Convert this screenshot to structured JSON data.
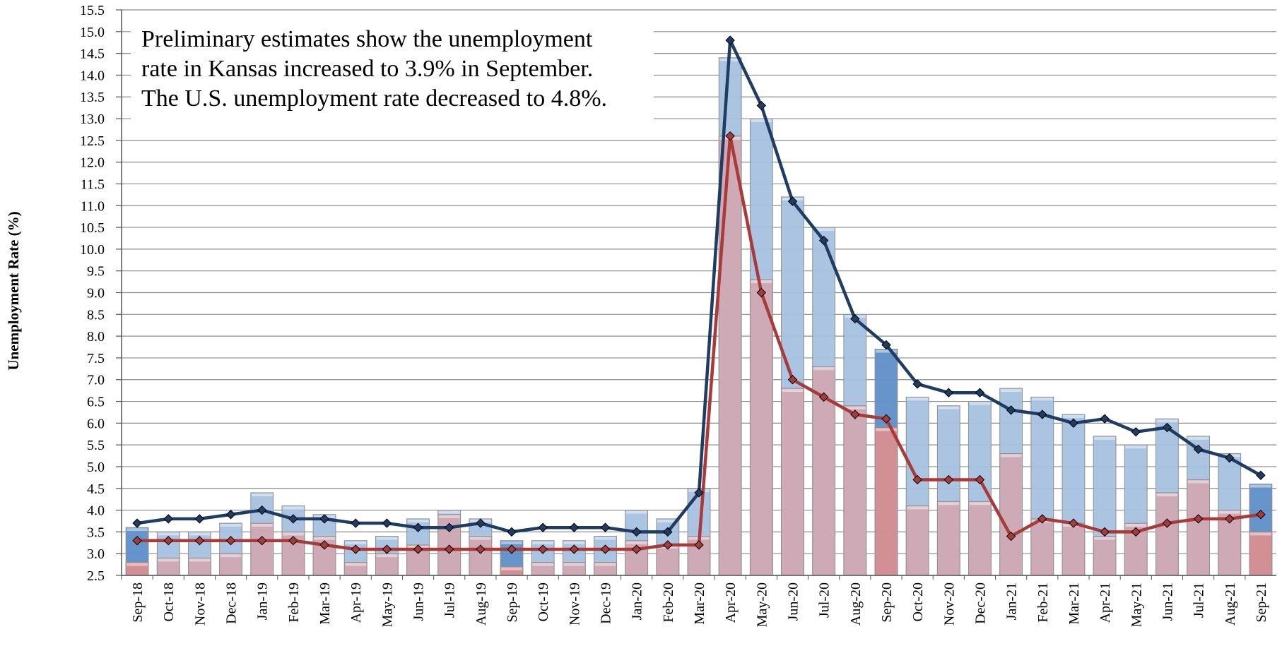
{
  "chart_data": {
    "type": "bar+line",
    "ylabel": "Unemployment Rate (%)",
    "ylim": [
      2.5,
      15.5
    ],
    "ytick_step": 0.5,
    "grid": true,
    "annotation": [
      "Preliminary estimates show the unemployment",
      "rate in Kansas increased to 3.9% in September.",
      "The U.S. unemployment rate decreased to 4.8%."
    ],
    "categories": [
      "Sep-18",
      "Oct-18",
      "Nov-18",
      "Dec-18",
      "Jan-19",
      "Feb-19",
      "Mar-19",
      "Apr-19",
      "May-19",
      "Jun-19",
      "Jul-19",
      "Aug-19",
      "Sep-19",
      "Oct-19",
      "Nov-19",
      "Dec-19",
      "Jan-20",
      "Feb-20",
      "Mar-20",
      "Apr-20",
      "May-20",
      "Jun-20",
      "Jul-20",
      "Aug-20",
      "Sep-20",
      "Oct-20",
      "Nov-20",
      "Dec-20",
      "Jan-21",
      "Feb-21",
      "Mar-21",
      "Apr-21",
      "May-21",
      "Jun-21",
      "Jul-21",
      "Aug-21",
      "Sep-21"
    ],
    "highlight_categories": [
      "Sep-18",
      "Sep-19",
      "Sep-20",
      "Sep-21"
    ],
    "series": [
      {
        "kind": "bar",
        "color": "#a6c1e0",
        "highlight_color": "#5f8fc8",
        "values": [
          3.6,
          3.5,
          3.5,
          3.7,
          4.4,
          4.1,
          3.9,
          3.3,
          3.4,
          3.8,
          4.0,
          3.8,
          3.3,
          3.3,
          3.3,
          3.4,
          4.0,
          3.8,
          4.5,
          14.4,
          13.0,
          11.2,
          10.5,
          8.5,
          7.7,
          6.6,
          6.4,
          6.5,
          6.8,
          6.6,
          6.2,
          5.7,
          5.5,
          6.1,
          5.7,
          5.3,
          4.6
        ]
      },
      {
        "kind": "bar",
        "color": "#cfa9b3",
        "highlight_color": "#d88e90",
        "values": [
          2.8,
          2.9,
          2.9,
          3.0,
          3.7,
          3.5,
          3.4,
          2.8,
          3.0,
          3.2,
          3.9,
          3.4,
          2.7,
          2.8,
          2.8,
          2.8,
          3.3,
          3.2,
          3.4,
          12.6,
          9.3,
          6.8,
          7.3,
          6.4,
          5.9,
          4.1,
          4.2,
          4.2,
          5.3,
          3.8,
          3.7,
          3.4,
          3.7,
          4.4,
          4.7,
          4.0,
          3.5
        ]
      },
      {
        "kind": "line",
        "color": "#1f3c63",
        "values": [
          3.7,
          3.8,
          3.8,
          3.9,
          4.0,
          3.8,
          3.8,
          3.7,
          3.7,
          3.6,
          3.6,
          3.7,
          3.5,
          3.6,
          3.6,
          3.6,
          3.5,
          3.5,
          4.4,
          14.8,
          13.3,
          11.1,
          10.2,
          8.4,
          7.8,
          6.9,
          6.7,
          6.7,
          6.3,
          6.2,
          6.0,
          6.1,
          5.8,
          5.9,
          5.4,
          5.2,
          4.8
        ]
      },
      {
        "kind": "line",
        "color": "#a83a3a",
        "values": [
          3.3,
          3.3,
          3.3,
          3.3,
          3.3,
          3.3,
          3.2,
          3.1,
          3.1,
          3.1,
          3.1,
          3.1,
          3.1,
          3.1,
          3.1,
          3.1,
          3.1,
          3.2,
          3.2,
          12.6,
          9.0,
          7.0,
          6.6,
          6.2,
          6.1,
          4.7,
          4.7,
          4.7,
          3.4,
          3.8,
          3.7,
          3.5,
          3.5,
          3.7,
          3.8,
          3.8,
          3.9
        ]
      }
    ]
  }
}
